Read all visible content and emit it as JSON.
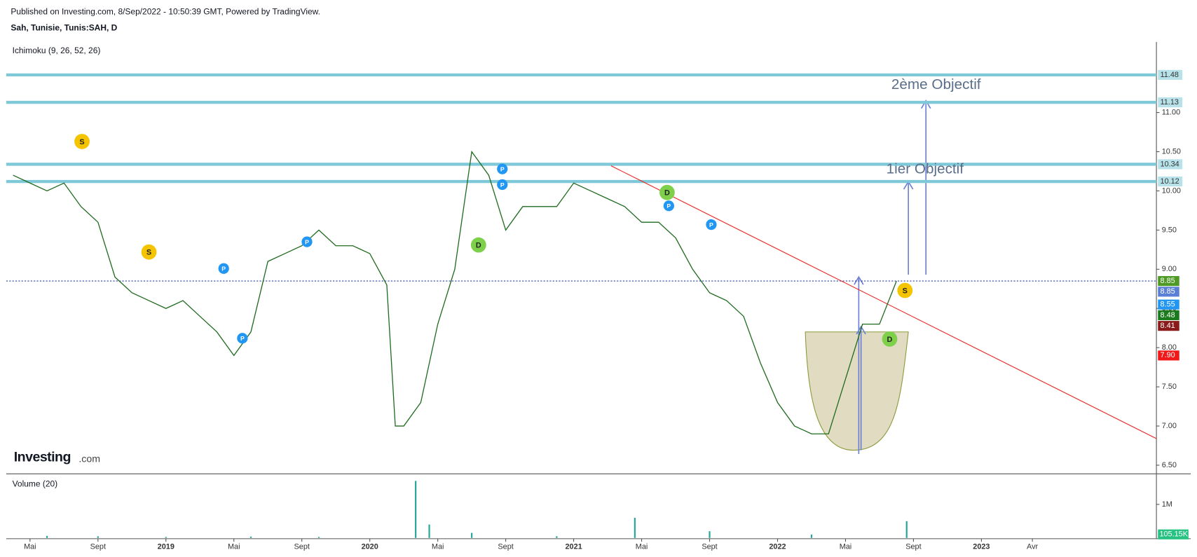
{
  "header": {
    "published": "Published on Investing.com, 8/Sep/2022 - 10:50:39 GMT, Powered by TradingView.",
    "symbol": "Sah, Tunisie, Tunis:SAH, D",
    "indicator": "Ichimoku (9, 26, 52, 26)",
    "logo": "Investing",
    "logo_suffix": ".com"
  },
  "chart_data": [
    {
      "type": "line",
      "title": "Sah, Tunisie, Tunis:SAH, D",
      "x": [
        3,
        4,
        5,
        6,
        7,
        8,
        9,
        10,
        11,
        12,
        13,
        14,
        15,
        16,
        17,
        18,
        19,
        20,
        21,
        22,
        23,
        24,
        25,
        25.5,
        26,
        27,
        28,
        29,
        30,
        31,
        32,
        33,
        34,
        35,
        36,
        37,
        38,
        39,
        40,
        41,
        42,
        43,
        44,
        45,
        46,
        47,
        48,
        49,
        50,
        51,
        52,
        53,
        54,
        55
      ],
      "series": [
        {
          "name": "Sah",
          "color": "#1e6b1e",
          "values": [
            10.2,
            10.1,
            10.0,
            10.1,
            9.8,
            9.6,
            8.9,
            8.7,
            8.6,
            8.5,
            8.6,
            8.4,
            8.2,
            7.9,
            8.2,
            9.1,
            9.2,
            9.3,
            9.5,
            9.3,
            9.3,
            9.2,
            8.8,
            7.0,
            7.0,
            7.3,
            8.3,
            9.0,
            10.5,
            10.2,
            9.5,
            9.8,
            9.8,
            9.8,
            10.1,
            10.0,
            9.9,
            9.8,
            9.6,
            9.6,
            9.4,
            9.0,
            8.7,
            8.6,
            8.4,
            7.8,
            7.3,
            7.0,
            6.9,
            6.9,
            7.6,
            8.3,
            8.3,
            8.85
          ]
        }
      ],
      "xlim": [
        2.6,
        70.3
      ],
      "ylim": [
        6.39,
        11.9
      ],
      "xticks": [
        {
          "value": 4,
          "label": "Mai"
        },
        {
          "value": 8,
          "label": "Sept"
        },
        {
          "value": 12,
          "label": "2019"
        },
        {
          "value": 16,
          "label": "Mai"
        },
        {
          "value": 20,
          "label": "Sept"
        },
        {
          "value": 24,
          "label": "2020"
        },
        {
          "value": 28,
          "label": "Mai"
        },
        {
          "value": 32,
          "label": "Sept"
        },
        {
          "value": 36,
          "label": "2021"
        },
        {
          "value": 40,
          "label": "Mai"
        },
        {
          "value": 44,
          "label": "Sept"
        },
        {
          "value": 48,
          "label": "2022"
        },
        {
          "value": 52,
          "label": "Mai"
        },
        {
          "value": 56,
          "label": "Sept"
        },
        {
          "value": 60,
          "label": "2023"
        },
        {
          "value": 63,
          "label": "Avr"
        }
      ],
      "yticks": [
        {
          "value": 6.5,
          "label": "6.50"
        },
        {
          "value": 7,
          "label": "7.00"
        },
        {
          "value": 7.5,
          "label": "7.50"
        },
        {
          "value": 8,
          "label": "8.00"
        },
        {
          "value": 8.5,
          "label": "8.50"
        },
        {
          "value": 9,
          "label": "9.00"
        },
        {
          "value": 9.5,
          "label": "9.50"
        },
        {
          "value": 10,
          "label": "10.00"
        },
        {
          "value": 10.5,
          "label": "10.50"
        },
        {
          "value": 11,
          "label": "11.00"
        }
      ],
      "levels": [
        {
          "value": 11.48,
          "label": "11.48",
          "color": "#7fc8d8"
        },
        {
          "value": 11.13,
          "label": "11.13",
          "color": "#7fc8d8"
        },
        {
          "value": 10.34,
          "label": "10.34",
          "color": "#7fc8d8"
        },
        {
          "value": 10.12,
          "label": "10.12",
          "color": "#7fc8d8"
        }
      ],
      "price_line": {
        "value": 8.85,
        "color": "#2a3f9e"
      },
      "price_tags": [
        {
          "value": 8.85,
          "label": "8.85",
          "color": "#4e9a25"
        },
        {
          "value": 8.85,
          "label": "8.85",
          "color": "#5a7fd6"
        },
        {
          "value": 8.55,
          "label": "8.55",
          "color": "#2196f3"
        },
        {
          "value": 8.48,
          "label": "8.48",
          "color": "#1b7a1b"
        },
        {
          "value": 8.41,
          "label": "8.41",
          "color": "#8b1a1a"
        },
        {
          "value": 7.9,
          "label": "7.90",
          "color": "#f01818"
        }
      ],
      "trendline": {
        "x": [
          38.2,
          70.3
        ],
        "values": [
          10.32,
          6.84
        ],
        "color": "#f02020"
      },
      "annotations": [
        {
          "text": "2ème Objectif",
          "x": 54.7,
          "value": 11.35
        },
        {
          "text": "1ier Objectif",
          "x": 54.4,
          "value": 10.27
        }
      ],
      "markers": [
        {
          "label": "S",
          "x": 7.06,
          "value": 10.63,
          "color": "#f5c400"
        },
        {
          "label": "S",
          "x": 11.0,
          "value": 9.22,
          "color": "#f5c400"
        },
        {
          "label": "P",
          "x": 15.4,
          "value": 9.01,
          "color": "#2196f3"
        },
        {
          "label": "P",
          "x": 16.5,
          "value": 8.12,
          "color": "#2196f3"
        },
        {
          "label": "P",
          "x": 20.3,
          "value": 9.35,
          "color": "#2196f3"
        },
        {
          "label": "D",
          "x": 30.4,
          "value": 9.31,
          "color": "#7ed04a"
        },
        {
          "label": "P",
          "x": 31.8,
          "value": 10.28,
          "color": "#2196f3"
        },
        {
          "label": "P",
          "x": 31.8,
          "value": 10.08,
          "color": "#2196f3"
        },
        {
          "label": "D",
          "x": 41.5,
          "value": 9.98,
          "color": "#7ed04a"
        },
        {
          "label": "P",
          "x": 41.6,
          "value": 9.81,
          "color": "#2196f3"
        },
        {
          "label": "P",
          "x": 44.1,
          "value": 9.57,
          "color": "#2196f3"
        },
        {
          "label": "D",
          "x": 54.6,
          "value": 8.11,
          "color": "#7ed04a"
        },
        {
          "label": "S",
          "x": 55.5,
          "value": 8.73,
          "color": "#f5c400"
        }
      ]
    },
    {
      "type": "bar",
      "title": "Volume (20)",
      "x": [
        5,
        8,
        12,
        17,
        21,
        26.7,
        27.5,
        30,
        35,
        39.6,
        44,
        50,
        55.6
      ],
      "values": [
        60000,
        50000,
        30000,
        40000,
        30000,
        1700000,
        400000,
        150000,
        50000,
        600000,
        200000,
        100000,
        500000
      ],
      "color": "#26a69a",
      "xlim": [
        2.6,
        70.3
      ],
      "ylim": [
        0,
        1820000
      ],
      "yticks": [
        {
          "value": 1000000,
          "label": "1M"
        }
      ],
      "last_tag": {
        "value": 105150,
        "label": "105.15K",
        "color": "#26c281"
      }
    }
  ]
}
